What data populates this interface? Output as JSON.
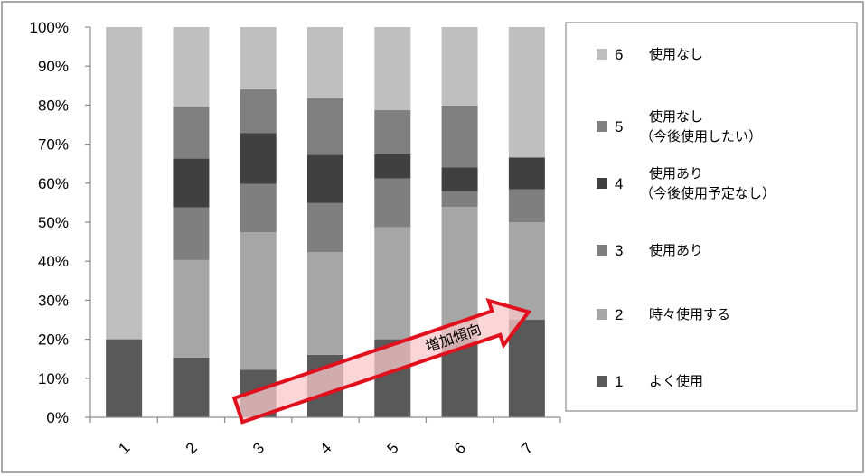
{
  "chart_data": {
    "type": "bar",
    "stacked": "percent",
    "categories": [
      "1",
      "2",
      "3",
      "4",
      "5",
      "6",
      "7"
    ],
    "y_ticks": [
      "0%",
      "10%",
      "20%",
      "30%",
      "40%",
      "50%",
      "60%",
      "70%",
      "80%",
      "90%",
      "100%"
    ],
    "ylim": [
      0,
      100
    ],
    "grid": false,
    "legend_position": "right",
    "series": [
      {
        "name": "1",
        "label_lines": [
          "よく使用"
        ],
        "color": "#595959",
        "values": [
          20,
          15.3,
          12.2,
          16,
          20,
          20,
          25
        ]
      },
      {
        "name": "2",
        "label_lines": [
          "時々使用する"
        ],
        "color": "#a6a6a6",
        "values": [
          0,
          25,
          35.2,
          26.3,
          28.7,
          33.9,
          25
        ]
      },
      {
        "name": "3",
        "label_lines": [
          "使用あり"
        ],
        "color": "#7f7f7f",
        "values": [
          0,
          13.5,
          12.4,
          12.6,
          12.5,
          4,
          8.4
        ]
      },
      {
        "name": "4",
        "label_lines": [
          "使用あり",
          "（今後使用予定なし）"
        ],
        "color": "#404040",
        "values": [
          0,
          12.5,
          13,
          12.4,
          6.2,
          6.1,
          8.2
        ]
      },
      {
        "name": "5",
        "label_lines": [
          "使用なし",
          "（今後使用したい）"
        ],
        "color": "#808080",
        "values": [
          0,
          13.3,
          11.3,
          14.5,
          11.3,
          15.9,
          0
        ]
      },
      {
        "name": "6",
        "label_lines": [
          "使用なし"
        ],
        "color": "#bfbfbf",
        "values": [
          80,
          20.4,
          15.9,
          18.2,
          21.3,
          20.1,
          33.4
        ]
      }
    ],
    "annotation": {
      "text": "増加傾向",
      "from_category": "3",
      "to_category": "7",
      "stroke_color": "#e0101c",
      "fill_color": "#f8c8cc"
    }
  }
}
